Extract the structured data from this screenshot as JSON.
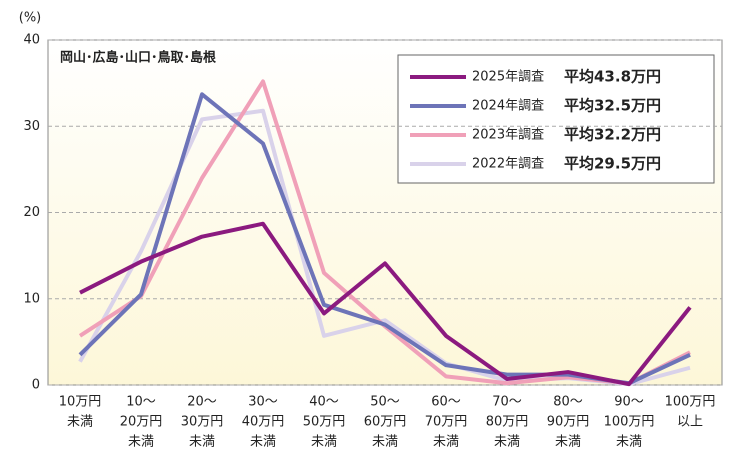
{
  "chart_data": {
    "type": "line",
    "y_unit": "(%)",
    "region_label": "岡山･広島･山口･鳥取･島根",
    "categories": [
      [
        "10万円",
        "未満"
      ],
      [
        "10～",
        "20万円",
        "未満"
      ],
      [
        "20～",
        "30万円",
        "未満"
      ],
      [
        "30～",
        "40万円",
        "未満"
      ],
      [
        "40～",
        "50万円",
        "未満"
      ],
      [
        "50～",
        "60万円",
        "未満"
      ],
      [
        "60～",
        "70万円",
        "未満"
      ],
      [
        "70～",
        "80万円",
        "未満"
      ],
      [
        "80～",
        "90万円",
        "未満"
      ],
      [
        "90～",
        "100万円",
        "未満"
      ],
      [
        "100万円",
        "以上"
      ]
    ],
    "series": [
      {
        "name": "2025年調査",
        "average_label": "平均43.8万円",
        "color": "#8b1a7f",
        "values": [
          10.7,
          14.3,
          17.2,
          18.7,
          8.3,
          14.1,
          5.7,
          0.7,
          1.5,
          0.1,
          9.0
        ]
      },
      {
        "name": "2024年調査",
        "average_label": "平均32.5万円",
        "color": "#6d74b8",
        "values": [
          3.5,
          10.5,
          33.7,
          28.0,
          9.3,
          7.0,
          2.3,
          1.2,
          1.2,
          0.2,
          3.5
        ]
      },
      {
        "name": "2023年調査",
        "average_label": "平均32.2万円",
        "color": "#f0a0b8",
        "values": [
          5.7,
          10.3,
          24.0,
          35.2,
          13.0,
          6.8,
          1.0,
          0.2,
          0.9,
          0.2,
          3.8
        ]
      },
      {
        "name": "2022年調査",
        "average_label": "平均29.5万円",
        "color": "#d9d2ea",
        "values": [
          2.7,
          15.5,
          30.8,
          31.8,
          5.7,
          7.5,
          2.5,
          0.5,
          0.8,
          0.1,
          2.0
        ]
      }
    ],
    "ylim": [
      0,
      40
    ],
    "yticks": [
      0,
      10,
      20,
      30,
      40
    ],
    "grid": true
  }
}
